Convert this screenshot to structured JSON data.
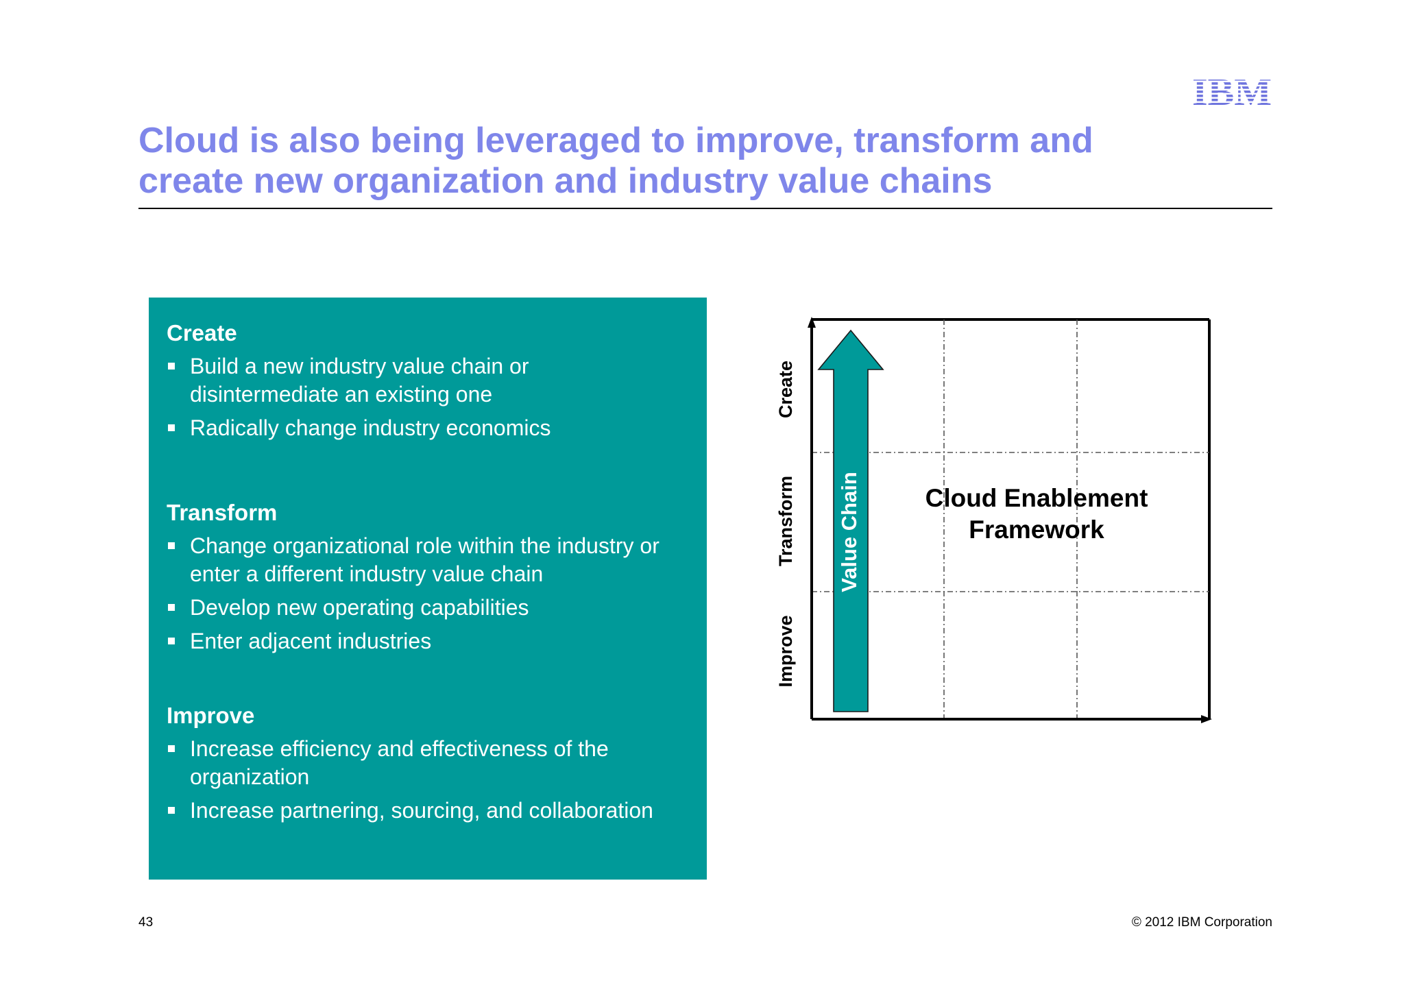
{
  "slide": {
    "logo_text": "IBM",
    "title_line1": "Cloud is also being leveraged to improve, transform and",
    "title_line2": "create new organization and industry value chains",
    "page_number": "43",
    "copyright": "© 2012 IBM Corporation"
  },
  "box": {
    "sections": [
      {
        "heading": "Create",
        "bullets": [
          {
            "line1": "Build a new industry value chain or",
            "line2": "disintermediate an existing one"
          },
          {
            "line1": "Radically change industry economics"
          }
        ]
      },
      {
        "heading": "Transform",
        "bullets": [
          {
            "line1": "Change organizational role within the industry or",
            "line2": "enter a different industry value chain"
          },
          {
            "line1": "Develop new operating capabilities"
          },
          {
            "line1": "Enter adjacent industries"
          }
        ]
      },
      {
        "heading": "Improve",
        "bullets": [
          {
            "line1": "Increase efficiency and effectiveness of  the",
            "line2": "organization"
          },
          {
            "line1": "Increase partnering, sourcing, and collaboration"
          }
        ]
      }
    ],
    "colors": {
      "background": "#009a99",
      "text": "#ffffff"
    }
  },
  "diagram": {
    "y_labels": {
      "top": "Create",
      "middle": "Transform",
      "bottom": "Improve"
    },
    "arrow_label": "Value Chain",
    "center_line1": "Cloud Enablement",
    "center_line2": "Framework",
    "colors": {
      "arrow": "#009a99",
      "title": "#7f86ea"
    }
  }
}
